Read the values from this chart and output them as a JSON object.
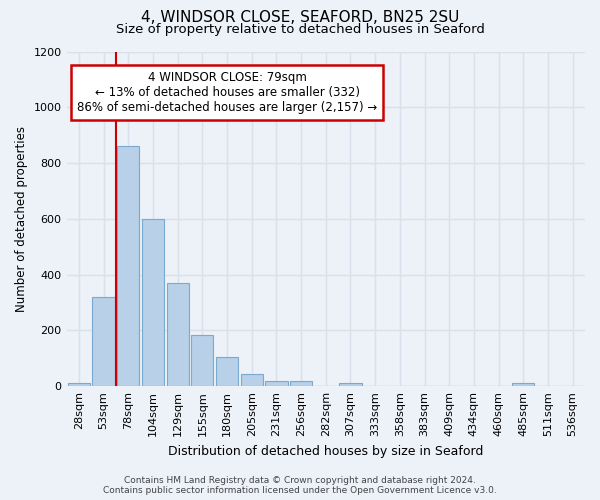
{
  "title": "4, WINDSOR CLOSE, SEAFORD, BN25 2SU",
  "subtitle": "Size of property relative to detached houses in Seaford",
  "xlabel": "Distribution of detached houses by size in Seaford",
  "ylabel": "Number of detached properties",
  "bar_labels": [
    "28sqm",
    "53sqm",
    "78sqm",
    "104sqm",
    "129sqm",
    "155sqm",
    "180sqm",
    "205sqm",
    "231sqm",
    "256sqm",
    "282sqm",
    "307sqm",
    "333sqm",
    "358sqm",
    "383sqm",
    "409sqm",
    "434sqm",
    "460sqm",
    "485sqm",
    "511sqm",
    "536sqm"
  ],
  "bar_values": [
    10,
    320,
    860,
    600,
    370,
    185,
    105,
    45,
    20,
    20,
    0,
    10,
    0,
    0,
    0,
    0,
    0,
    0,
    10,
    0,
    0
  ],
  "bar_color": "#b8d0e8",
  "bar_edge_color": "#7aaad0",
  "marker_line_index": 2,
  "marker_line_color": "#cc0000",
  "annotation_title": "4 WINDSOR CLOSE: 79sqm",
  "annotation_line1": "← 13% of detached houses are smaller (332)",
  "annotation_line2": "86% of semi-detached houses are larger (2,157) →",
  "annotation_box_color": "#ffffff",
  "annotation_box_edgecolor": "#cc0000",
  "ylim": [
    0,
    1200
  ],
  "yticks": [
    0,
    200,
    400,
    600,
    800,
    1000,
    1200
  ],
  "footer_line1": "Contains HM Land Registry data © Crown copyright and database right 2024.",
  "footer_line2": "Contains public sector information licensed under the Open Government Licence v3.0.",
  "background_color": "#edf1f8",
  "grid_color": "#d8e0ec",
  "title_fontsize": 11,
  "subtitle_fontsize": 9.5
}
